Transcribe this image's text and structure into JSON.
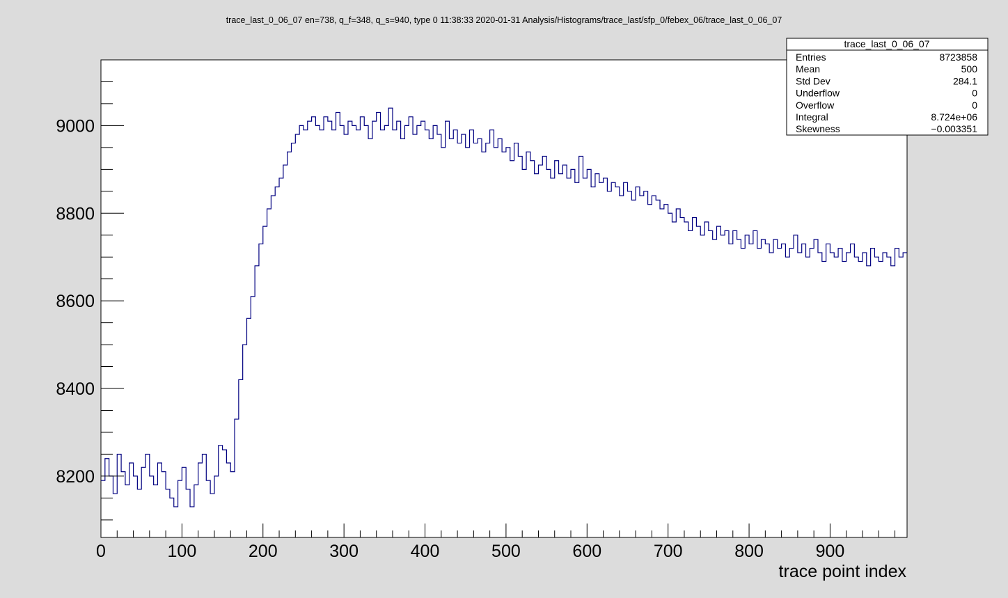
{
  "window": {
    "title": "trace_last_0_06_07 en=738, q_f=348, q_s=940, type 0  11:38:33  2020-01-31  Analysis/Histograms/trace_last/sfp_0/febex_06/trace_last_0_06_07"
  },
  "colors": {
    "background": "#dcdcdc",
    "frame": "#ffffff",
    "trace": "#000080",
    "axis": "#000000"
  },
  "stats": {
    "title": "trace_last_0_06_07",
    "rows": [
      {
        "label": "Entries",
        "value": "8723858"
      },
      {
        "label": "Mean",
        "value": "500"
      },
      {
        "label": "Std Dev",
        "value": "284.1"
      },
      {
        "label": "Underflow",
        "value": "0"
      },
      {
        "label": "Overflow",
        "value": "0"
      },
      {
        "label": "Integral",
        "value": "8.724e+06"
      },
      {
        "label": "Skewness",
        "value": "−0.003351"
      }
    ]
  },
  "chart_data": {
    "type": "line",
    "style": "histogram-step",
    "title": "trace_last_0_06_07 en=738, q_f=348, q_s=940, type 0  11:38:33  2020-01-31  Analysis/Histograms/trace_last/sfp_0/febex_06/trace_last_0_06_07",
    "xlabel": "trace point index",
    "ylabel": "",
    "xlim": [
      0,
      995
    ],
    "ylim": [
      8060,
      9150
    ],
    "x_ticks": [
      0,
      100,
      200,
      300,
      400,
      500,
      600,
      700,
      800,
      900
    ],
    "x_tick_labels": [
      "0",
      "100",
      "200",
      "300",
      "400",
      "500",
      "600",
      "700",
      "800",
      "900"
    ],
    "y_ticks": [
      8200,
      8400,
      8600,
      8800,
      9000
    ],
    "y_tick_labels": [
      "8200",
      "8400",
      "8600",
      "8800",
      "9000"
    ],
    "grid": false,
    "legend": "none",
    "series": [
      {
        "name": "trace_last_0_06_07",
        "bin_width": 5,
        "x": [
          0,
          5,
          10,
          15,
          20,
          25,
          30,
          35,
          40,
          45,
          50,
          55,
          60,
          65,
          70,
          75,
          80,
          85,
          90,
          95,
          100,
          105,
          110,
          115,
          120,
          125,
          130,
          135,
          140,
          145,
          150,
          155,
          160,
          165,
          170,
          175,
          180,
          185,
          190,
          195,
          200,
          205,
          210,
          215,
          220,
          225,
          230,
          235,
          240,
          245,
          250,
          255,
          260,
          265,
          270,
          275,
          280,
          285,
          290,
          295,
          300,
          305,
          310,
          315,
          320,
          325,
          330,
          335,
          340,
          345,
          350,
          355,
          360,
          365,
          370,
          375,
          380,
          385,
          390,
          395,
          400,
          405,
          410,
          415,
          420,
          425,
          430,
          435,
          440,
          445,
          450,
          455,
          460,
          465,
          470,
          475,
          480,
          485,
          490,
          495,
          500,
          505,
          510,
          515,
          520,
          525,
          530,
          535,
          540,
          545,
          550,
          555,
          560,
          565,
          570,
          575,
          580,
          585,
          590,
          595,
          600,
          605,
          610,
          615,
          620,
          625,
          630,
          635,
          640,
          645,
          650,
          655,
          660,
          665,
          670,
          675,
          680,
          685,
          690,
          695,
          700,
          705,
          710,
          715,
          720,
          725,
          730,
          735,
          740,
          745,
          750,
          755,
          760,
          765,
          770,
          775,
          780,
          785,
          790,
          795,
          800,
          805,
          810,
          815,
          820,
          825,
          830,
          835,
          840,
          845,
          850,
          855,
          860,
          865,
          870,
          875,
          880,
          885,
          890,
          895,
          900,
          905,
          910,
          915,
          920,
          925,
          930,
          935,
          940,
          945,
          950,
          955,
          960,
          965,
          970,
          975,
          980,
          985,
          990
        ],
        "values": [
          8190,
          8240,
          8200,
          8160,
          8250,
          8210,
          8180,
          8230,
          8200,
          8170,
          8220,
          8250,
          8200,
          8180,
          8230,
          8210,
          8170,
          8150,
          8130,
          8190,
          8220,
          8170,
          8130,
          8180,
          8230,
          8250,
          8190,
          8160,
          8200,
          8270,
          8260,
          8230,
          8210,
          8330,
          8420,
          8500,
          8560,
          8610,
          8680,
          8730,
          8770,
          8810,
          8840,
          8860,
          8880,
          8910,
          8940,
          8960,
          8980,
          9000,
          8990,
          9010,
          9020,
          9000,
          8990,
          9020,
          9010,
          8990,
          9030,
          9000,
          8980,
          9010,
          9000,
          8990,
          9020,
          9000,
          8970,
          9010,
          9030,
          8990,
          9000,
          9040,
          8990,
          9010,
          8970,
          9000,
          9020,
          8980,
          9000,
          9010,
          8990,
          8970,
          9000,
          8980,
          8950,
          9010,
          8970,
          8990,
          8960,
          8980,
          8950,
          8990,
          8960,
          8970,
          8940,
          8960,
          8990,
          8950,
          8970,
          8940,
          8950,
          8920,
          8960,
          8930,
          8900,
          8940,
          8920,
          8890,
          8910,
          8930,
          8900,
          8880,
          8920,
          8890,
          8910,
          8880,
          8900,
          8870,
          8930,
          8880,
          8900,
          8860,
          8890,
          8870,
          8880,
          8850,
          8870,
          8860,
          8840,
          8870,
          8850,
          8830,
          8860,
          8840,
          8850,
          8820,
          8840,
          8830,
          8810,
          8820,
          8800,
          8780,
          8810,
          8790,
          8780,
          8760,
          8790,
          8770,
          8750,
          8780,
          8760,
          8740,
          8770,
          8750,
          8760,
          8730,
          8760,
          8740,
          8720,
          8750,
          8730,
          8760,
          8720,
          8740,
          8730,
          8710,
          8740,
          8720,
          8730,
          8700,
          8720,
          8750,
          8710,
          8730,
          8700,
          8720,
          8740,
          8710,
          8690,
          8730,
          8710,
          8700,
          8720,
          8690,
          8710,
          8730,
          8700,
          8690,
          8710,
          8680,
          8720,
          8700,
          8690,
          8710,
          8700,
          8680,
          8720,
          8700,
          8710
        ]
      }
    ]
  }
}
